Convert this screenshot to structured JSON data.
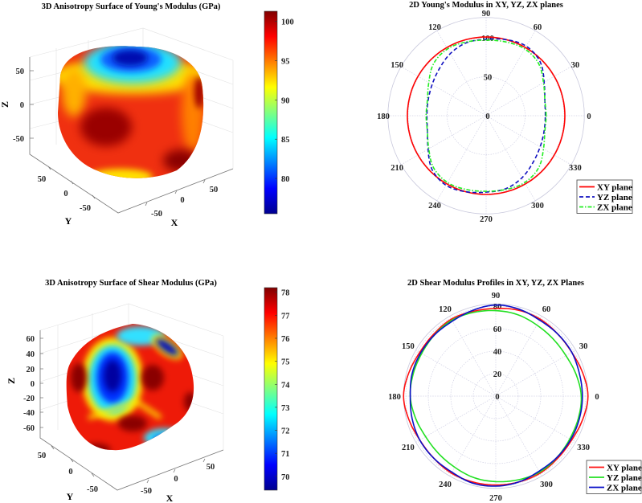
{
  "chart_data": [
    {
      "type": "surface3d",
      "title": "3D Anisotropy Surface of Young's Modulus (GPa)",
      "xlabel": "X",
      "ylabel": "Y",
      "zlabel": "Z",
      "xticks": [
        "-50",
        "0",
        "50"
      ],
      "yticks": [
        "50",
        "0",
        "-50"
      ],
      "zticks": [
        "50",
        "0",
        "-50"
      ],
      "colorbar": {
        "min": 75.5,
        "max": 101.3,
        "ticks": [
          "100",
          "95",
          "90",
          "85",
          "80"
        ],
        "tick_values": [
          100,
          95,
          90,
          85,
          80
        ],
        "colormap": "jet"
      }
    },
    {
      "type": "polar",
      "title": "2D Young's Modulus in XY, YZ, ZX planes",
      "angle_ticks": [
        "0",
        "30",
        "60",
        "90",
        "120",
        "150",
        "180",
        "210",
        "240",
        "270",
        "300",
        "330"
      ],
      "radial_ticks": [
        "0",
        "50",
        "100"
      ],
      "radial_tick_values": [
        0,
        50,
        100
      ],
      "rmax": 126,
      "angles_deg": [
        0,
        15,
        30,
        45,
        60,
        75,
        90,
        105,
        120,
        135,
        150,
        165,
        180,
        195,
        210,
        225,
        240,
        255,
        270,
        285,
        300,
        315,
        330,
        345
      ],
      "series": [
        {
          "name": "XY plane",
          "color": "#ff0000",
          "style": "solid",
          "r": [
            101,
            101,
            101,
            101,
            101,
            101,
            101,
            101,
            101,
            101,
            101,
            101,
            101,
            101,
            101,
            101,
            101,
            101,
            101,
            101,
            101,
            101,
            101,
            101
          ]
        },
        {
          "name": "YZ plane",
          "color": "#1010c0",
          "style": "dashed",
          "r": [
            76,
            78,
            86,
            98,
            103,
            101,
            98,
            97,
            92,
            85,
            80,
            77,
            76,
            78,
            86,
            98,
            103,
            101,
            98,
            97,
            92,
            85,
            80,
            77
          ]
        },
        {
          "name": "ZX plane",
          "color": "#22ee22",
          "style": "dashdot",
          "r": [
            77,
            78,
            85,
            95,
            99,
            98,
            97,
            98,
            99,
            95,
            85,
            78,
            77,
            78,
            85,
            95,
            99,
            98,
            97,
            98,
            99,
            95,
            85,
            78
          ]
        }
      ],
      "legend": "bottom-right"
    },
    {
      "type": "surface3d",
      "title": "3D Anisotropy Surface of Shear Modulus (GPa)",
      "xlabel": "X",
      "ylabel": "Y",
      "zlabel": "Z",
      "xticks": [
        "-50",
        "0",
        "50"
      ],
      "yticks": [
        "50",
        "0",
        "-50"
      ],
      "zticks": [
        "60",
        "40",
        "20",
        "0",
        "-20",
        "-40",
        "-60"
      ],
      "colorbar": {
        "min": 69.4,
        "max": 78.2,
        "ticks": [
          "78",
          "77",
          "76",
          "75",
          "74",
          "73",
          "72",
          "71",
          "70"
        ],
        "tick_values": [
          78,
          77,
          76,
          75,
          74,
          73,
          72,
          71,
          70
        ],
        "colormap": "jet"
      }
    },
    {
      "type": "polar",
      "title": "2D Shear Modulus Profiles in XY, YZ, ZX Planes",
      "angle_ticks": [
        "0",
        "30",
        "60",
        "90",
        "120",
        "150",
        "180",
        "210",
        "240",
        "270",
        "300",
        "330"
      ],
      "radial_ticks": [
        "0",
        "20",
        "40",
        "60",
        "80"
      ],
      "radial_tick_values": [
        0,
        20,
        40,
        60,
        80
      ],
      "rmax": 82,
      "angles_deg": [
        0,
        15,
        30,
        45,
        60,
        75,
        90,
        105,
        120,
        135,
        150,
        165,
        180,
        195,
        210,
        225,
        240,
        255,
        270,
        285,
        300,
        315,
        330,
        345
      ],
      "series": [
        {
          "name": "XY plane",
          "color": "#ff1010",
          "style": "solid",
          "r": [
            82,
            80,
            78,
            78,
            79,
            79,
            78,
            78,
            79,
            78,
            78,
            80,
            82,
            80,
            78,
            78,
            79,
            79,
            79,
            79,
            79,
            78,
            78,
            80
          ]
        },
        {
          "name": "YZ plane",
          "color": "#22e022",
          "style": "solid",
          "r": [
            76,
            74,
            72,
            72,
            73,
            75,
            76,
            77,
            78,
            77,
            76,
            76,
            76,
            74,
            72,
            72,
            73,
            75,
            76,
            77,
            78,
            77,
            76,
            76
          ]
        },
        {
          "name": "ZX plane",
          "color": "#0a10c8",
          "style": "solid",
          "r": [
            77,
            77,
            78,
            78,
            78,
            80,
            81,
            79,
            77,
            77,
            77,
            77,
            76,
            77,
            78,
            78,
            78,
            80,
            80,
            79,
            77,
            77,
            77,
            77
          ]
        }
      ],
      "legend": "bottom-right"
    }
  ]
}
